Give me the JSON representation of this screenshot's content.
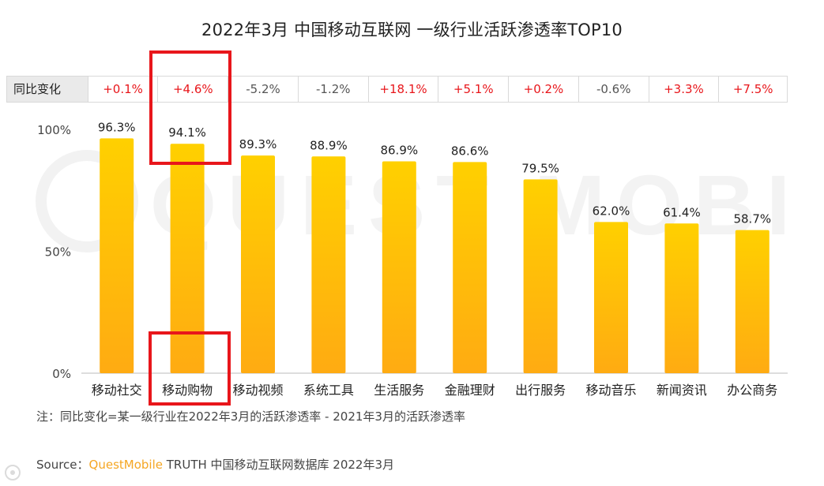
{
  "title": "2022年3月 中国移动互联网 一级行业活跃渗透率TOP10",
  "yoy": {
    "label": "同比变化",
    "values": [
      "+0.1%",
      "+4.6%",
      "-5.2%",
      "-1.2%",
      "+18.1%",
      "+5.1%",
      "+0.2%",
      "-0.6%",
      "+3.3%",
      "+7.5%"
    ],
    "positive_color": "#e8161b",
    "negative_color": "#555555"
  },
  "chart_data": {
    "type": "bar",
    "categories": [
      "移动社交",
      "移动购物",
      "移动视频",
      "系统工具",
      "生活服务",
      "金融理财",
      "出行服务",
      "移动音乐",
      "新闻资讯",
      "办公商务"
    ],
    "values": [
      96.3,
      94.1,
      89.3,
      88.9,
      86.9,
      86.6,
      79.5,
      62.0,
      61.4,
      58.7
    ],
    "value_labels": [
      "96.3%",
      "94.1%",
      "89.3%",
      "88.9%",
      "86.9%",
      "86.6%",
      "79.5%",
      "62.0%",
      "61.4%",
      "58.7%"
    ],
    "ylim": [
      0,
      100
    ],
    "yticks": [
      {
        "value": 100,
        "label": "100%"
      },
      {
        "value": 50,
        "label": "50%"
      },
      {
        "value": 0,
        "label": "0%"
      }
    ],
    "bar_color_top": "#ffd000",
    "bar_color_bottom": "#ffab12",
    "highlighted_category": "移动购物",
    "highlight_color": "#e8161b"
  },
  "note": "注：同比变化=某一级行业在2022年3月的活跃渗透率 - 2021年3月的活跃渗透率",
  "source": {
    "prefix": "Source：",
    "brand": "QuestMobile",
    "rest": " TRUTH 中国移动互联网数据库 2022年3月"
  },
  "watermark_text": "QUEST MOBILE"
}
